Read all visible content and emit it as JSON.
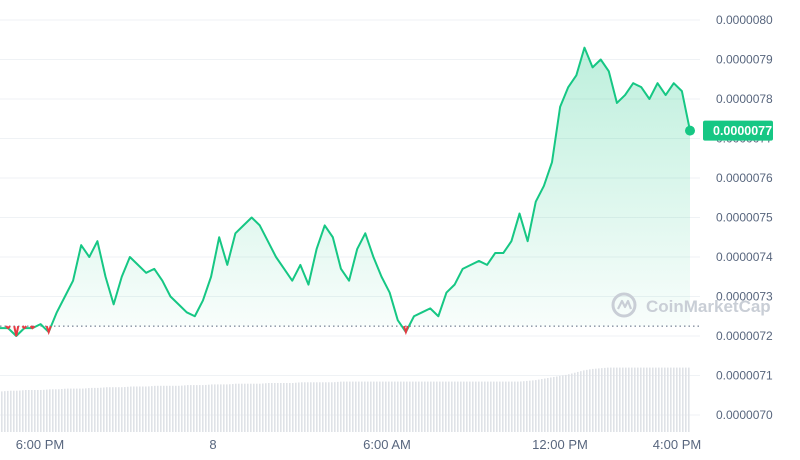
{
  "chart_data": {
    "type": "area",
    "y_ticks": [
      "0.0000080",
      "0.0000079",
      "0.0000078",
      "0.0000077",
      "0.0000076",
      "0.0000075",
      "0.0000074",
      "0.0000073",
      "0.0000072",
      "0.0000071",
      "0.0000070"
    ],
    "x_ticks": [
      "6:00 PM",
      "8",
      "6:00 AM",
      "12:00 PM",
      "4:00 PM"
    ],
    "current_price_label": "0.0000077",
    "current_price": 7.72e-06,
    "reference_price": 7.225e-06,
    "watermark": "CoinMarketCap",
    "colors": {
      "up_line": "#16c784",
      "down_line": "#ea3943",
      "area_fill": "#16c784",
      "volume_bar": "#dfe2e7",
      "grid": "#eff2f5",
      "badge": "#16c784"
    },
    "series": [
      {
        "values": [
          7.22e-06,
          7.22e-06,
          7.2e-06,
          7.22e-06,
          7.22e-06,
          7.23e-06,
          7.21e-06,
          7.26e-06,
          7.3e-06,
          7.34e-06,
          7.43e-06,
          7.4e-06,
          7.44e-06,
          7.35e-06,
          7.28e-06,
          7.35e-06,
          7.4e-06,
          7.38e-06,
          7.36e-06,
          7.37e-06,
          7.34e-06,
          7.3e-06,
          7.28e-06,
          7.26e-06,
          7.25e-06,
          7.29e-06,
          7.35e-06,
          7.45e-06,
          7.38e-06,
          7.46e-06,
          7.48e-06,
          7.5e-06,
          7.48e-06,
          7.44e-06,
          7.4e-06,
          7.37e-06,
          7.34e-06,
          7.38e-06,
          7.33e-06,
          7.42e-06,
          7.48e-06,
          7.45e-06,
          7.37e-06,
          7.34e-06,
          7.42e-06,
          7.46e-06,
          7.4e-06,
          7.35e-06,
          7.31e-06,
          7.24e-06,
          7.21e-06,
          7.25e-06,
          7.26e-06,
          7.27e-06,
          7.25e-06,
          7.31e-06,
          7.33e-06,
          7.37e-06,
          7.38e-06,
          7.39e-06,
          7.38e-06,
          7.41e-06,
          7.41e-06,
          7.44e-06,
          7.51e-06,
          7.44e-06,
          7.54e-06,
          7.58e-06,
          7.64e-06,
          7.78e-06,
          7.83e-06,
          7.86e-06,
          7.93e-06,
          7.88e-06,
          7.9e-06,
          7.87e-06,
          7.79e-06,
          7.81e-06,
          7.84e-06,
          7.83e-06,
          7.8e-06,
          7.84e-06,
          7.81e-06,
          7.84e-06,
          7.82e-06,
          7.72e-06
        ]
      }
    ],
    "volume": [
      0.58,
      0.59,
      0.59,
      0.6,
      0.6,
      0.6,
      0.61,
      0.61,
      0.62,
      0.62,
      0.62,
      0.63,
      0.63,
      0.64,
      0.64,
      0.64,
      0.65,
      0.65,
      0.65,
      0.66,
      0.66,
      0.66,
      0.66,
      0.67,
      0.67,
      0.67,
      0.68,
      0.68,
      0.68,
      0.69,
      0.69,
      0.69,
      0.69,
      0.7,
      0.7,
      0.7,
      0.7,
      0.71,
      0.71,
      0.71,
      0.71,
      0.71,
      0.72,
      0.72,
      0.72,
      0.72,
      0.72,
      0.72,
      0.72,
      0.72,
      0.72,
      0.72,
      0.72,
      0.72,
      0.72,
      0.72,
      0.72,
      0.72,
      0.72,
      0.72,
      0.72,
      0.72,
      0.72,
      0.72,
      0.72,
      0.73,
      0.74,
      0.76,
      0.78,
      0.8,
      0.82,
      0.85,
      0.88,
      0.9,
      0.91,
      0.92,
      0.92,
      0.92,
      0.92,
      0.92,
      0.92,
      0.92,
      0.92,
      0.92,
      0.92,
      0.92
    ]
  }
}
